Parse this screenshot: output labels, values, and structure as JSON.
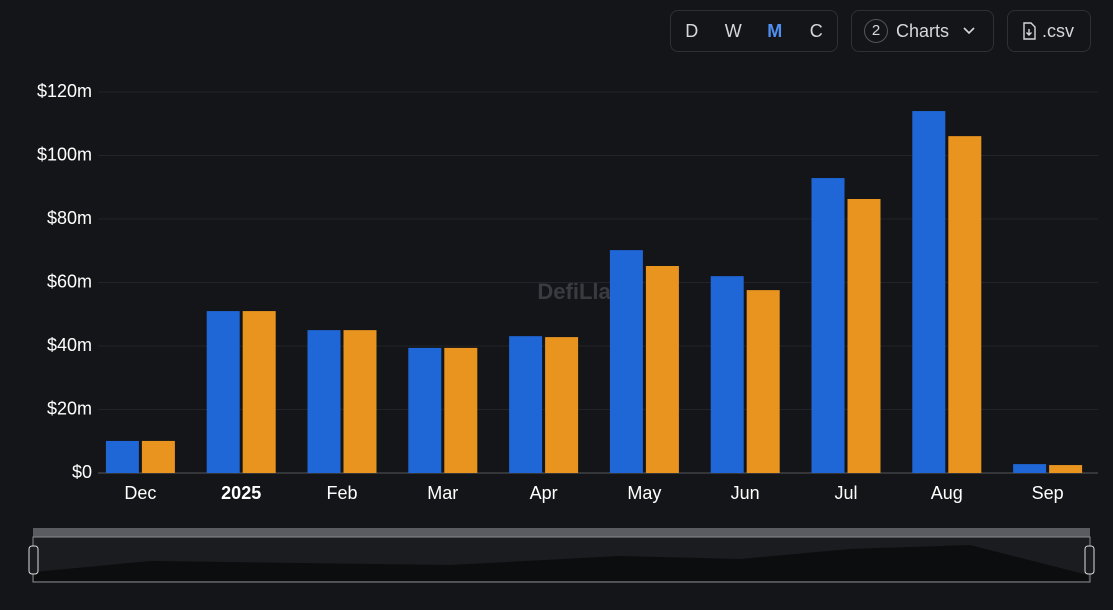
{
  "toolbar": {
    "periods": [
      "D",
      "W",
      "M",
      "C"
    ],
    "charts_count": "2",
    "charts_label": "Charts",
    "csv": ".csv"
  },
  "watermark": "DefiLlama",
  "chart_data": {
    "type": "bar",
    "categories": [
      "Dec",
      "2025",
      "Feb",
      "Mar",
      "Apr",
      "May",
      "Jun",
      "Jul",
      "Aug",
      "Sep"
    ],
    "series": [
      {
        "color": "#1f66d6",
        "values": [
          10.1,
          51,
          45,
          39.4,
          43.1,
          70.2,
          62,
          92.9,
          114,
          2.8
        ]
      },
      {
        "color": "#e8941f",
        "values": [
          10.1,
          51,
          45,
          39.4,
          42.8,
          65.2,
          57.6,
          86.3,
          106.1,
          2.5
        ]
      }
    ],
    "ylim": [
      0,
      120
    ],
    "yticks": [
      {
        "value": 0,
        "label": "$0"
      },
      {
        "value": 20,
        "label": "$20m"
      },
      {
        "value": 40,
        "label": "$40m"
      },
      {
        "value": 60,
        "label": "$60m"
      },
      {
        "value": 80,
        "label": "$80m"
      },
      {
        "value": 100,
        "label": "$100m"
      },
      {
        "value": 120,
        "label": "$120m"
      }
    ],
    "grid": true
  }
}
